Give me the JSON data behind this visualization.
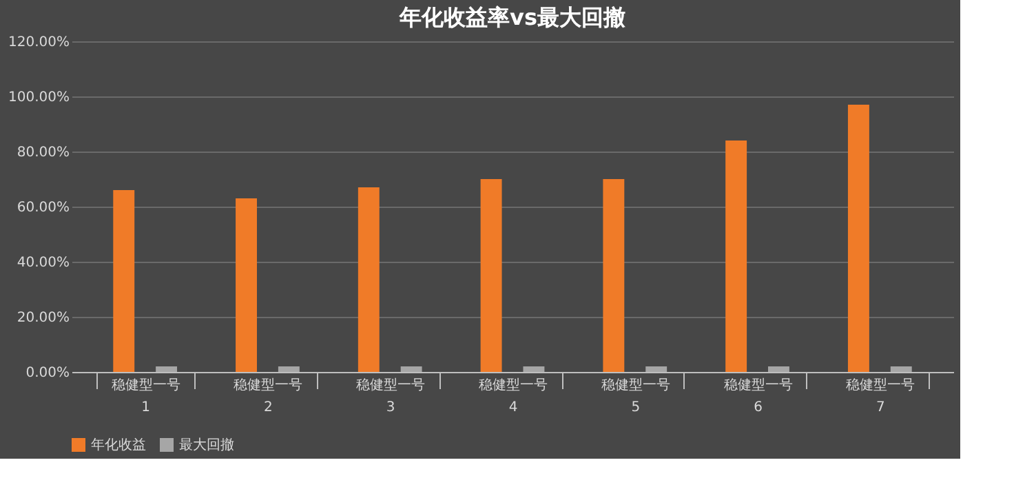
{
  "chart_data": {
    "type": "bar",
    "title": "年化收益率vs最大回撤",
    "categories": [
      "稳健型一号\n1",
      "稳健型一号\n2",
      "稳健型一号\n3",
      "稳健型一号\n4",
      "稳健型一号\n5",
      "稳健型一号\n6",
      "稳健型一号\n7"
    ],
    "series": [
      {
        "name": "年化收益",
        "color": "#f07b28",
        "values": [
          66,
          63,
          67,
          70,
          70,
          84,
          97
        ]
      },
      {
        "name": "最大回撤",
        "color": "#a6a6a6",
        "values": [
          2,
          2,
          2,
          2,
          2,
          2,
          2
        ]
      }
    ],
    "ylim": [
      0,
      120
    ],
    "yticks": [
      {
        "value": 0,
        "label": "0.00%"
      },
      {
        "value": 20,
        "label": "20.00%"
      },
      {
        "value": 40,
        "label": "40.00%"
      },
      {
        "value": 60,
        "label": "60.00%"
      },
      {
        "value": 80,
        "label": "80.00%"
      },
      {
        "value": 100,
        "label": "100.00%"
      },
      {
        "value": 120,
        "label": "120.00%"
      }
    ],
    "grid": "y",
    "legend": "bottom"
  }
}
